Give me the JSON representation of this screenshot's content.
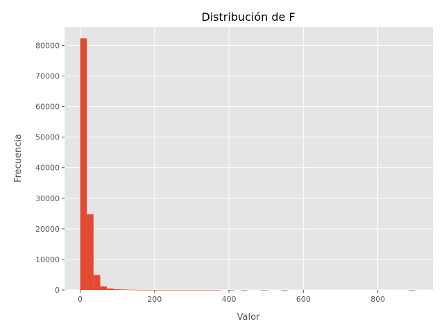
{
  "chart_data": {
    "type": "bar",
    "title": "Distribución de F",
    "xlabel": "Valor",
    "ylabel": "Frecuencia",
    "xlim": [
      -42,
      948
    ],
    "ylim": [
      0,
      86000
    ],
    "xticks": [
      0,
      200,
      400,
      600,
      800
    ],
    "yticks": [
      0,
      10000,
      20000,
      30000,
      40000,
      50000,
      60000,
      70000,
      80000
    ],
    "grid": true,
    "bin_width": 18,
    "bin_edges_start": 0,
    "values": [
      82300,
      24800,
      4900,
      1200,
      500,
      250,
      150,
      80,
      40,
      20,
      10,
      6,
      4,
      3,
      2,
      2,
      1,
      1,
      1,
      1,
      1,
      0,
      1,
      0,
      1,
      0,
      0,
      1,
      0,
      0,
      1,
      0,
      0,
      0,
      0,
      0,
      0,
      0,
      0,
      0,
      0,
      0,
      0,
      0,
      0,
      0,
      0,
      0,
      0,
      1
    ],
    "bar_color": "#E24A33",
    "background_color": "#E5E5E5",
    "grid_color": "#FFFFFF"
  }
}
